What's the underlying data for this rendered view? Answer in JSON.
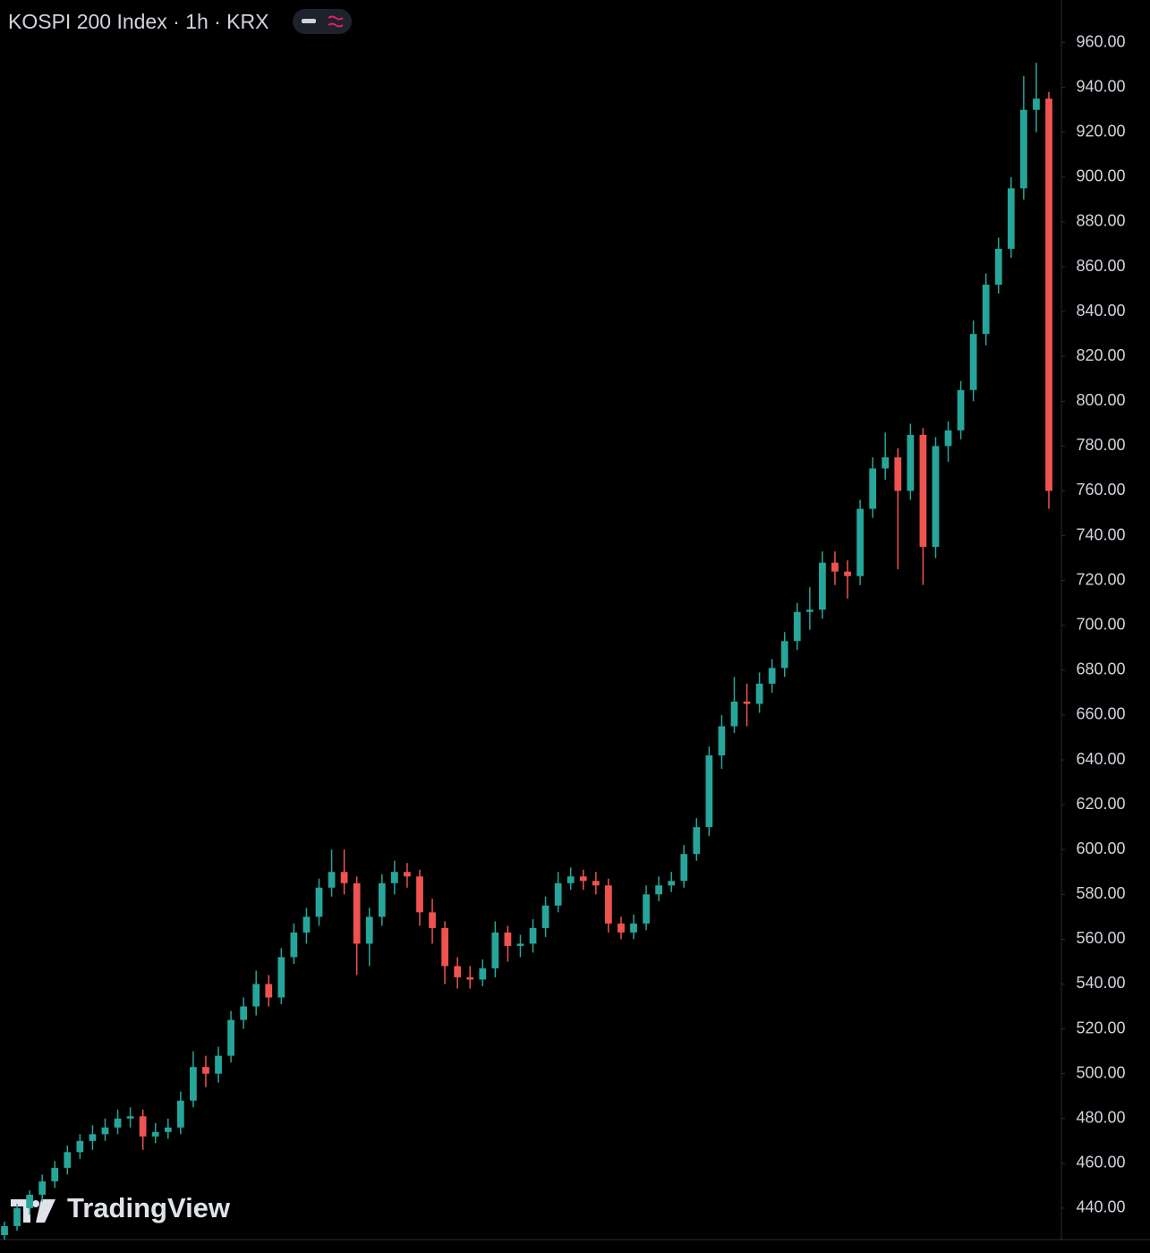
{
  "chart_data": {
    "type": "candlestick",
    "title": "KOSPI 200 Index · 1h · KRX",
    "watermark": "TradingView",
    "up_color": "#26a69a",
    "down_color": "#ef5350",
    "ylim": [
      426,
      979
    ],
    "yticks": [
      {
        "value": 440,
        "label": "440.00"
      },
      {
        "value": 460,
        "label": "460.00"
      },
      {
        "value": 480,
        "label": "480.00"
      },
      {
        "value": 500,
        "label": "500.00"
      },
      {
        "value": 520,
        "label": "520.00"
      },
      {
        "value": 540,
        "label": "540.00"
      },
      {
        "value": 560,
        "label": "560.00"
      },
      {
        "value": 580,
        "label": "580.00"
      },
      {
        "value": 600,
        "label": "600.00"
      },
      {
        "value": 620,
        "label": "620.00"
      },
      {
        "value": 640,
        "label": "640.00"
      },
      {
        "value": 660,
        "label": "660.00"
      },
      {
        "value": 680,
        "label": "680.00"
      },
      {
        "value": 700,
        "label": "700.00"
      },
      {
        "value": 720,
        "label": "720.00"
      },
      {
        "value": 740,
        "label": "740.00"
      },
      {
        "value": 760,
        "label": "760.00"
      },
      {
        "value": 780,
        "label": "780.00"
      },
      {
        "value": 800,
        "label": "800.00"
      },
      {
        "value": 820,
        "label": "820.00"
      },
      {
        "value": 840,
        "label": "840.00"
      },
      {
        "value": 860,
        "label": "860.00"
      },
      {
        "value": 880,
        "label": "880.00"
      },
      {
        "value": 900,
        "label": "900.00"
      },
      {
        "value": 920,
        "label": "920.00"
      },
      {
        "value": 940,
        "label": "940.00"
      },
      {
        "value": 960,
        "label": "960.00"
      }
    ],
    "open": [
      428,
      432,
      440,
      446,
      452,
      458,
      465,
      470,
      473,
      476,
      480,
      481,
      472,
      474,
      476,
      488,
      503,
      500,
      508,
      524,
      530,
      540,
      534,
      552,
      563,
      570,
      583,
      590,
      585,
      558,
      570,
      585,
      590,
      588,
      572,
      565,
      548,
      543,
      542,
      547,
      563,
      557,
      558,
      565,
      575,
      585,
      588,
      586,
      584,
      567,
      563,
      567,
      580,
      584,
      586,
      598,
      610,
      642,
      655,
      666,
      665,
      674,
      681,
      693,
      706,
      707,
      728,
      724,
      722,
      752,
      770,
      775,
      760,
      785,
      735,
      780,
      787,
      805,
      830,
      852,
      868,
      895,
      930,
      935
    ],
    "high": [
      434,
      442,
      448,
      455,
      461,
      468,
      473,
      477,
      480,
      484,
      485,
      484,
      478,
      480,
      492,
      510,
      508,
      512,
      528,
      534,
      546,
      544,
      556,
      567,
      574,
      587,
      600,
      600,
      588,
      574,
      589,
      595,
      594,
      591,
      578,
      568,
      552,
      548,
      551,
      568,
      566,
      562,
      569,
      579,
      590,
      592,
      591,
      590,
      587,
      570,
      571,
      584,
      588,
      590,
      602,
      614,
      646,
      660,
      677,
      674,
      679,
      685,
      697,
      710,
      717,
      733,
      733,
      729,
      756,
      775,
      786,
      779,
      790,
      788,
      784,
      791,
      809,
      836,
      857,
      873,
      900,
      945,
      951,
      938
    ],
    "low": [
      426,
      430,
      437,
      443,
      449,
      455,
      462,
      466,
      470,
      473,
      476,
      466,
      469,
      471,
      473,
      485,
      494,
      496,
      505,
      520,
      526,
      530,
      531,
      549,
      558,
      566,
      579,
      580,
      544,
      548,
      566,
      580,
      583,
      566,
      558,
      540,
      538,
      538,
      539,
      543,
      550,
      552,
      554,
      561,
      572,
      582,
      582,
      580,
      563,
      560,
      560,
      564,
      577,
      581,
      583,
      595,
      606,
      636,
      652,
      655,
      661,
      670,
      677,
      689,
      698,
      703,
      718,
      712,
      718,
      748,
      765,
      725,
      756,
      718,
      730,
      773,
      783,
      800,
      825,
      848,
      864,
      890,
      920,
      752
    ],
    "close": [
      432,
      440,
      446,
      452,
      458,
      465,
      470,
      473,
      476,
      480,
      481,
      472,
      474,
      476,
      488,
      503,
      500,
      508,
      524,
      530,
      540,
      534,
      552,
      563,
      570,
      583,
      590,
      585,
      558,
      570,
      585,
      590,
      588,
      572,
      565,
      548,
      543,
      542,
      547,
      563,
      557,
      558,
      565,
      575,
      585,
      588,
      586,
      584,
      567,
      563,
      567,
      580,
      584,
      586,
      598,
      610,
      642,
      655,
      666,
      665,
      674,
      681,
      693,
      706,
      707,
      728,
      724,
      722,
      752,
      770,
      775,
      760,
      785,
      735,
      780,
      787,
      805,
      830,
      852,
      868,
      895,
      930,
      935,
      760
    ]
  }
}
